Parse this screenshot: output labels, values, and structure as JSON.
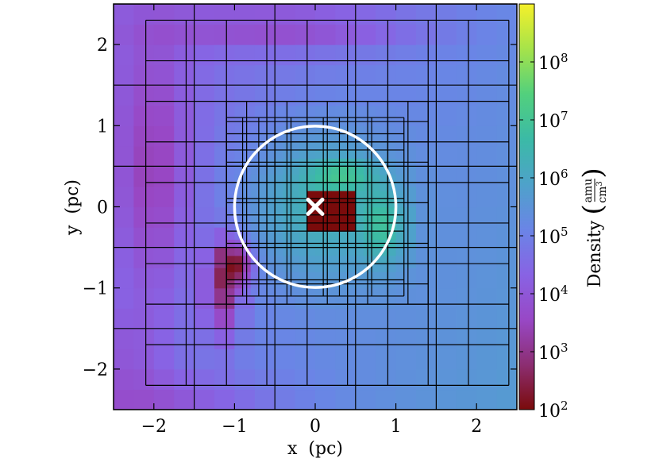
{
  "chart_data": {
    "type": "heatmap",
    "title": "",
    "xlabel": "x  (pc)",
    "ylabel": "y  (pc)",
    "xlim": [
      -2.5,
      2.5
    ],
    "ylim": [
      -2.5,
      2.5
    ],
    "xticks": [
      -2,
      -1,
      0,
      1,
      2
    ],
    "yticks": [
      -2,
      -1,
      0,
      1,
      2
    ],
    "xtick_labels": [
      "−2",
      "−1",
      "0",
      "1",
      "2"
    ],
    "ytick_labels": [
      "−2",
      "−1",
      "0",
      "1",
      "2"
    ],
    "colorbar": {
      "label": "Density",
      "unit_numerator": "amu",
      "unit_denominator": "cm",
      "unit_denominator_exponent": "3",
      "scale": "log",
      "range": [
        100,
        1000000000
      ],
      "tick_exponents": [
        2,
        3,
        4,
        5,
        6,
        7,
        8
      ],
      "tick_base": "10",
      "colormap": [
        "#7a0b0b",
        "#8c2e72",
        "#9848c6",
        "#8863e4",
        "#6a85e6",
        "#4ea2ca",
        "#3bbaa6",
        "#52d07d",
        "#a6e34a",
        "#f5f02a"
      ]
    },
    "circle": {
      "center": [
        0,
        0
      ],
      "radius": 1.0,
      "color": "#ffffff"
    },
    "marker": {
      "symbol": "x",
      "position": [
        0,
        0
      ],
      "color": "#ffffff"
    },
    "grid": true
  }
}
